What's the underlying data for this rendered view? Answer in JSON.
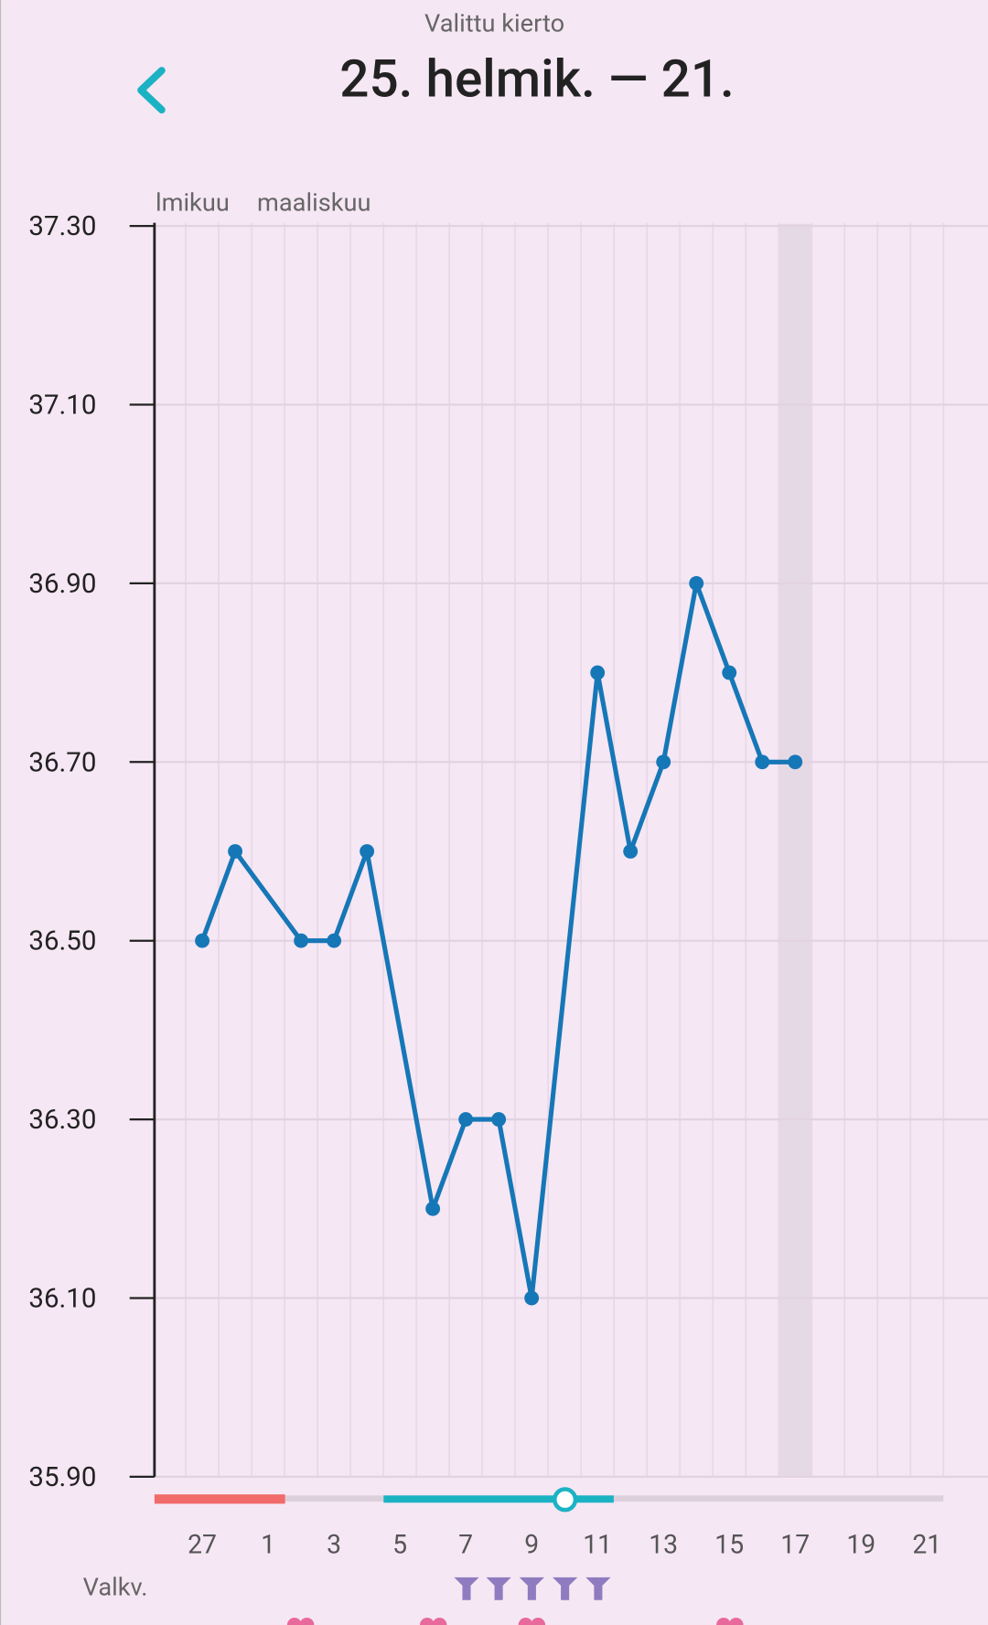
{
  "header": {
    "subtitle": "Valittu kierto",
    "title": "25. helmik. — 21."
  },
  "chart_data": {
    "type": "line",
    "month_labels": [
      "lmikuu",
      "maaliskuu"
    ],
    "x": [
      2,
      3,
      5,
      6,
      7,
      9,
      10,
      11,
      12,
      14,
      15,
      16,
      17,
      18,
      19,
      20
    ],
    "series": [
      {
        "color": "#1677b7",
        "values": [
          36.5,
          36.6,
          36.5,
          36.5,
          36.6,
          36.2,
          36.3,
          36.3,
          36.1,
          36.8,
          36.6,
          36.7,
          36.9,
          36.8,
          36.7,
          36.7
        ]
      }
    ],
    "xlim": [
      0.55,
      24.5
    ],
    "xticks": [
      {
        "value": 2,
        "label": "27"
      },
      {
        "value": 4,
        "label": "1"
      },
      {
        "value": 6,
        "label": "3"
      },
      {
        "value": 8,
        "label": "5"
      },
      {
        "value": 10,
        "label": "7"
      },
      {
        "value": 12,
        "label": "9"
      },
      {
        "value": 14,
        "label": "11"
      },
      {
        "value": 16,
        "label": "13"
      },
      {
        "value": 18,
        "label": "15"
      },
      {
        "value": 20,
        "label": "17"
      },
      {
        "value": 22,
        "label": "19"
      },
      {
        "value": 24,
        "label": "21"
      }
    ],
    "ylim": [
      35.9,
      37.3
    ],
    "yticks": [
      {
        "value": 35.9,
        "label": "35.90"
      },
      {
        "value": 36.1,
        "label": "36.10"
      },
      {
        "value": 36.3,
        "label": "36.30"
      },
      {
        "value": 36.5,
        "label": "36.50"
      },
      {
        "value": 36.7,
        "label": "36.70"
      },
      {
        "value": 36.9,
        "label": "36.90"
      },
      {
        "value": 37.1,
        "label": "37.10"
      },
      {
        "value": 37.3,
        "label": "37.30"
      }
    ],
    "grid": true
  },
  "tracking": {
    "discharge_label": "Valkv."
  }
}
